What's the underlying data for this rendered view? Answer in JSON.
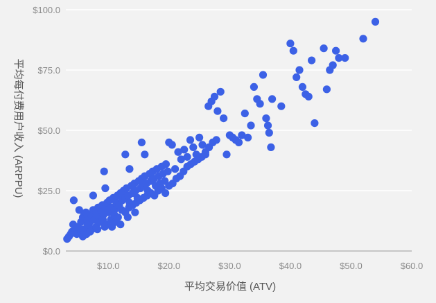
{
  "chart_data": {
    "type": "scatter",
    "title": "",
    "xlabel": "平均交易价值 (ATV)",
    "ylabel": "平均每付费用户收入 (ARPPU)",
    "xlim": [
      3.0,
      60.0
    ],
    "ylim": [
      0.0,
      100.0
    ],
    "x_ticks": [
      10,
      20,
      30,
      40,
      50,
      60
    ],
    "x_tick_labels": [
      "$10.0",
      "$20.0",
      "$30.0",
      "$40.0",
      "$50.0",
      "$60.0"
    ],
    "y_ticks": [
      0,
      25,
      50,
      75,
      100
    ],
    "y_tick_labels": [
      "$0.0",
      "$25.0",
      "$50.0",
      "$75.0",
      "$100.0"
    ],
    "grid": true,
    "legend": "none",
    "marker_color": "#3c61e6",
    "series": [
      {
        "points": [
          [
            3.5,
            6
          ],
          [
            3.8,
            7
          ],
          [
            4.0,
            8
          ],
          [
            4.5,
            9
          ],
          [
            4.2,
            11
          ],
          [
            5.0,
            10
          ],
          [
            5.5,
            12
          ],
          [
            5.8,
            14
          ],
          [
            6.0,
            15
          ],
          [
            6.5,
            13
          ],
          [
            6.3,
            16
          ],
          [
            7.0,
            12
          ],
          [
            7.2,
            15
          ],
          [
            7.5,
            17
          ],
          [
            7.8,
            13
          ],
          [
            8.0,
            16
          ],
          [
            8.3,
            18
          ],
          [
            8.5,
            14
          ],
          [
            8.8,
            17
          ],
          [
            9.0,
            19
          ],
          [
            9.2,
            15
          ],
          [
            9.5,
            18
          ],
          [
            9.8,
            20
          ],
          [
            10.0,
            16
          ],
          [
            10.2,
            21
          ],
          [
            10.5,
            18
          ],
          [
            10.8,
            22
          ],
          [
            11.0,
            17
          ],
          [
            11.3,
            20
          ],
          [
            11.5,
            23
          ],
          [
            11.8,
            19
          ],
          [
            12.0,
            24
          ],
          [
            12.3,
            21
          ],
          [
            12.5,
            25
          ],
          [
            12.8,
            22
          ],
          [
            13.0,
            26
          ],
          [
            13.3,
            23
          ],
          [
            13.5,
            20
          ],
          [
            13.8,
            27
          ],
          [
            14.0,
            24
          ],
          [
            14.3,
            28
          ],
          [
            14.5,
            25
          ],
          [
            14.8,
            22
          ],
          [
            15.0,
            29
          ],
          [
            15.3,
            26
          ],
          [
            15.5,
            30
          ],
          [
            15.8,
            27
          ],
          [
            16.0,
            31
          ],
          [
            16.3,
            28
          ],
          [
            16.5,
            25
          ],
          [
            16.8,
            32
          ],
          [
            17.0,
            29
          ],
          [
            17.3,
            33
          ],
          [
            17.5,
            30
          ],
          [
            17.8,
            27
          ],
          [
            18.0,
            34
          ],
          [
            18.3,
            31
          ],
          [
            18.5,
            28
          ],
          [
            18.8,
            35
          ],
          [
            19.0,
            32
          ],
          [
            19.3,
            29
          ],
          [
            19.5,
            36
          ],
          [
            19.8,
            33
          ],
          [
            20.0,
            45
          ],
          [
            20.5,
            44
          ],
          [
            21.0,
            34
          ],
          [
            21.5,
            41
          ],
          [
            22.0,
            38
          ],
          [
            22.5,
            42
          ],
          [
            23.0,
            39
          ],
          [
            23.5,
            46
          ],
          [
            24.0,
            43
          ],
          [
            24.5,
            40
          ],
          [
            25.0,
            47
          ],
          [
            25.5,
            44
          ],
          [
            26.0,
            41
          ],
          [
            26.5,
            60
          ],
          [
            27.0,
            62
          ],
          [
            27.5,
            64
          ],
          [
            28.0,
            58
          ],
          [
            28.5,
            66
          ],
          [
            29.0,
            55
          ],
          [
            29.5,
            40
          ],
          [
            30.0,
            48
          ],
          [
            30.5,
            47
          ],
          [
            31.0,
            46
          ],
          [
            31.5,
            45
          ],
          [
            32.0,
            48
          ],
          [
            32.5,
            57
          ],
          [
            33.0,
            47
          ],
          [
            33.5,
            52
          ],
          [
            34.0,
            68
          ],
          [
            34.5,
            63
          ],
          [
            35.0,
            61
          ],
          [
            35.5,
            73
          ],
          [
            36.0,
            55
          ],
          [
            36.3,
            52
          ],
          [
            36.5,
            49
          ],
          [
            36.8,
            43
          ],
          [
            37.0,
            63
          ],
          [
            38.5,
            60
          ],
          [
            40.0,
            86
          ],
          [
            40.5,
            83
          ],
          [
            41.0,
            72
          ],
          [
            41.5,
            75
          ],
          [
            42.0,
            68
          ],
          [
            42.5,
            65
          ],
          [
            43.0,
            64
          ],
          [
            43.5,
            79
          ],
          [
            44.0,
            53
          ],
          [
            45.5,
            84
          ],
          [
            46.0,
            67
          ],
          [
            46.5,
            75
          ],
          [
            47.0,
            77
          ],
          [
            47.5,
            83
          ],
          [
            48.0,
            80
          ],
          [
            49.0,
            80
          ],
          [
            52.0,
            88
          ],
          [
            54.0,
            95
          ],
          [
            4.3,
            21
          ],
          [
            9.3,
            33
          ],
          [
            9.5,
            26
          ],
          [
            12.8,
            40
          ],
          [
            13.5,
            34
          ],
          [
            15.5,
            45
          ],
          [
            16.0,
            40
          ],
          [
            7.5,
            23
          ],
          [
            5.2,
            17
          ],
          [
            6.8,
            10
          ],
          [
            3.2,
            5
          ],
          [
            4.8,
            7
          ],
          [
            5.5,
            8
          ],
          [
            6.0,
            9
          ],
          [
            6.6,
            11
          ],
          [
            7.3,
            9
          ],
          [
            8.0,
            10
          ],
          [
            8.6,
            12
          ],
          [
            9.1,
            13
          ],
          [
            9.7,
            11
          ],
          [
            10.4,
            13
          ],
          [
            11.0,
            15
          ],
          [
            11.6,
            14
          ],
          [
            12.2,
            17
          ],
          [
            12.8,
            16
          ],
          [
            13.4,
            18
          ],
          [
            14.0,
            19
          ],
          [
            14.6,
            20
          ],
          [
            15.2,
            21
          ],
          [
            15.8,
            22
          ],
          [
            16.4,
            23
          ],
          [
            17.0,
            24
          ],
          [
            17.6,
            23
          ],
          [
            18.2,
            25
          ],
          [
            18.8,
            26
          ],
          [
            19.4,
            24
          ],
          [
            20.0,
            27
          ],
          [
            20.6,
            28
          ],
          [
            21.2,
            30
          ],
          [
            21.8,
            31
          ],
          [
            22.4,
            33
          ],
          [
            23.0,
            35
          ],
          [
            23.6,
            36
          ],
          [
            24.2,
            37
          ],
          [
            24.8,
            38
          ],
          [
            25.4,
            39
          ],
          [
            26.0,
            40
          ],
          [
            26.6,
            43
          ],
          [
            27.2,
            45
          ],
          [
            27.8,
            46
          ],
          [
            10.6,
            10
          ],
          [
            11.2,
            12
          ],
          [
            13.2,
            14
          ],
          [
            14.4,
            16
          ],
          [
            6.4,
            7
          ],
          [
            7.0,
            8
          ],
          [
            8.2,
            9
          ],
          [
            5.8,
            6
          ],
          [
            9.4,
            10
          ],
          [
            12.0,
            11
          ]
        ]
      }
    ]
  }
}
